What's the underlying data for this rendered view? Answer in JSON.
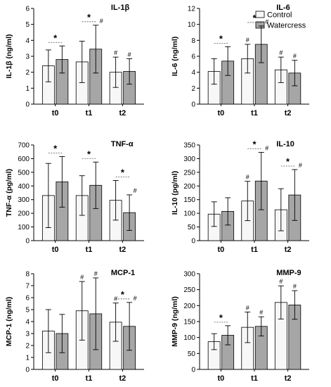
{
  "colors": {
    "control": "#f7f7f7",
    "watercress": "#a6a6a6",
    "stroke": "#000000"
  },
  "legend": {
    "placement": "top-right",
    "items": [
      "Control",
      "Watercress"
    ]
  },
  "chart_data": [
    {
      "type": "bar",
      "title": "IL-1β",
      "ylabel": "IL-1β (ng/ml)",
      "categories": [
        "t0",
        "t1",
        "t2"
      ],
      "ylim": [
        0,
        6
      ],
      "yticks": [
        "0",
        "1",
        "2",
        "3",
        "4",
        "5",
        "6"
      ],
      "series": [
        {
          "name": "Control",
          "values": [
            2.4,
            2.65,
            2.0
          ],
          "errors": [
            1.0,
            1.3,
            0.95
          ]
        },
        {
          "name": "Watercress",
          "values": [
            2.8,
            3.45,
            2.05
          ],
          "errors": [
            0.85,
            1.5,
            0.8
          ]
        }
      ],
      "stars": [
        {
          "category": 0,
          "label": "*"
        },
        {
          "category": 1,
          "label": "*"
        }
      ],
      "hashes": [
        {
          "category": 1,
          "series": 1,
          "label": "#"
        },
        {
          "category": 2,
          "series": 0,
          "label": "#"
        },
        {
          "category": 2,
          "series": 1,
          "label": "#"
        }
      ]
    },
    {
      "type": "bar",
      "title": "IL-6",
      "ylabel": "IL-6 (ng/ml)",
      "categories": [
        "t0",
        "t1",
        "t2"
      ],
      "ylim": [
        0,
        12
      ],
      "yticks": [
        "0",
        "2",
        "4",
        "6",
        "8",
        "10",
        "12"
      ],
      "series": [
        {
          "name": "Control",
          "values": [
            4.1,
            5.7,
            4.3
          ],
          "errors": [
            1.6,
            1.8,
            1.6
          ]
        },
        {
          "name": "Watercress",
          "values": [
            5.4,
            7.5,
            3.9
          ],
          "errors": [
            1.8,
            2.3,
            1.6
          ]
        }
      ],
      "stars": [
        {
          "category": 0,
          "label": "*"
        },
        {
          "category": 1,
          "label": "*"
        }
      ],
      "hashes": [
        {
          "category": 1,
          "series": 0,
          "label": "#"
        },
        {
          "category": 1,
          "series": 1,
          "label": "#"
        },
        {
          "category": 2,
          "series": 0,
          "label": "#"
        },
        {
          "category": 2,
          "series": 1,
          "label": "#"
        }
      ]
    },
    {
      "type": "bar",
      "title": "TNF-α",
      "ylabel": "TNF-α (pg/ml)",
      "categories": [
        "t0",
        "t1",
        "t2"
      ],
      "ylim": [
        0,
        700
      ],
      "yticks": [
        "0",
        "100",
        "200",
        "300",
        "400",
        "500",
        "600",
        "700"
      ],
      "series": [
        {
          "name": "Control",
          "values": [
            330,
            330,
            295
          ],
          "errors": [
            235,
            145,
            145
          ]
        },
        {
          "name": "Watercress",
          "values": [
            430,
            405,
            205
          ],
          "errors": [
            185,
            170,
            130
          ]
        }
      ],
      "stars": [
        {
          "category": 0,
          "label": "*"
        },
        {
          "category": 1,
          "label": "*"
        },
        {
          "category": 2,
          "label": "*"
        }
      ],
      "hashes": [
        {
          "category": 2,
          "series": 1,
          "label": "#"
        }
      ]
    },
    {
      "type": "bar",
      "title": "IL-10",
      "ylabel": "IL-10 (pg/ml)",
      "categories": [
        "t0",
        "t1",
        "t2"
      ],
      "ylim": [
        0,
        350
      ],
      "yticks": [
        "0",
        "50",
        "100",
        "150",
        "200",
        "250",
        "300",
        "350"
      ],
      "series": [
        {
          "name": "Control",
          "values": [
            97,
            145,
            113
          ],
          "errors": [
            45,
            72,
            77
          ]
        },
        {
          "name": "Watercress",
          "values": [
            107,
            218,
            167
          ],
          "errors": [
            50,
            105,
            93
          ]
        }
      ],
      "stars": [
        {
          "category": 1,
          "label": "*"
        },
        {
          "category": 2,
          "label": "*"
        }
      ],
      "hashes": [
        {
          "category": 1,
          "series": 0,
          "label": "#"
        },
        {
          "category": 1,
          "series": 1,
          "label": "#"
        },
        {
          "category": 2,
          "series": 1,
          "label": "#"
        }
      ]
    },
    {
      "type": "bar",
      "title": "MCP-1",
      "ylabel": "MCP-1 (ng/ml)",
      "categories": [
        "t0",
        "t1",
        "t2"
      ],
      "ylim": [
        0,
        8
      ],
      "yticks": [
        "0",
        "1",
        "2",
        "3",
        "4",
        "5",
        "6",
        "7",
        "8"
      ],
      "series": [
        {
          "name": "Control",
          "values": [
            3.2,
            4.9,
            3.95
          ],
          "errors": [
            1.8,
            2.45,
            1.6
          ]
        },
        {
          "name": "Watercress",
          "values": [
            3.0,
            4.65,
            3.6
          ],
          "errors": [
            1.6,
            3.0,
            2.0
          ]
        }
      ],
      "stars": [
        {
          "category": 2,
          "label": "*"
        }
      ],
      "hashes": [
        {
          "category": 1,
          "series": 0,
          "label": "#"
        },
        {
          "category": 1,
          "series": 1,
          "label": "#"
        },
        {
          "category": 2,
          "series": 0,
          "label": "#"
        },
        {
          "category": 2,
          "series": 1,
          "label": "#"
        }
      ]
    },
    {
      "type": "bar",
      "title": "MMP-9",
      "ylabel": "MMP-9 (ng/ml)",
      "categories": [
        "t0",
        "t1",
        "t2"
      ],
      "ylim": [
        0,
        300
      ],
      "yticks": [
        "0",
        "50",
        "100",
        "150",
        "200",
        "250",
        "300"
      ],
      "series": [
        {
          "name": "Control",
          "values": [
            87,
            132,
            210
          ],
          "errors": [
            25,
            48,
            52
          ]
        },
        {
          "name": "Watercress",
          "values": [
            107,
            135,
            202
          ],
          "errors": [
            30,
            30,
            45
          ]
        }
      ],
      "stars": [
        {
          "category": 0,
          "label": "*"
        }
      ],
      "hashes": [
        {
          "category": 1,
          "series": 0,
          "label": "#"
        },
        {
          "category": 1,
          "series": 1,
          "label": "#"
        },
        {
          "category": 2,
          "series": 0,
          "label": "#"
        },
        {
          "category": 2,
          "series": 1,
          "label": "#"
        }
      ]
    }
  ]
}
